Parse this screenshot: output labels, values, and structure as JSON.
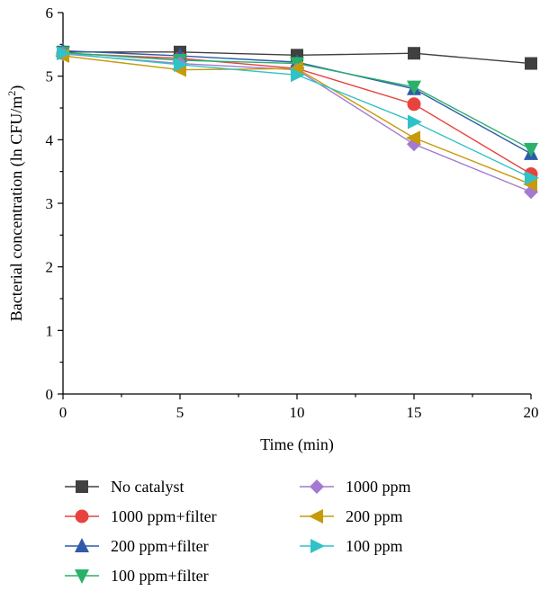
{
  "chart_data": {
    "type": "line",
    "xlabel": "Time (min)",
    "ylabel_main": "Bacterial concentration (ln CFU/m",
    "ylabel_sup": "2",
    "ylabel_close": ")",
    "xlim": [
      0,
      20
    ],
    "ylim": [
      0,
      6
    ],
    "xticks": [
      "0",
      "5",
      "10",
      "15",
      "20"
    ],
    "yticks": [
      "0",
      "1",
      "2",
      "3",
      "4",
      "5",
      "6"
    ],
    "x": [
      0,
      5,
      10,
      15,
      20
    ],
    "grid": false,
    "legend_position": "bottom",
    "series": [
      {
        "name": "No catalyst",
        "marker": "square",
        "color": "#404040",
        "values": [
          5.38,
          5.38,
          5.33,
          5.36,
          5.2
        ]
      },
      {
        "name": "1000 ppm+filter",
        "marker": "circle",
        "color": "#e8423f",
        "values": [
          5.36,
          5.28,
          5.12,
          4.56,
          3.46
        ]
      },
      {
        "name": "200 ppm+filter",
        "marker": "triangle-up",
        "color": "#2f5aa8",
        "values": [
          5.4,
          5.32,
          5.22,
          4.8,
          3.78
        ]
      },
      {
        "name": "100 ppm+filter",
        "marker": "triangle-down",
        "color": "#2ab06a",
        "values": [
          5.37,
          5.25,
          5.2,
          4.83,
          3.85
        ]
      },
      {
        "name": "1000 ppm",
        "marker": "diamond",
        "color": "#a37ad0",
        "values": [
          5.35,
          5.2,
          5.1,
          3.93,
          3.18
        ]
      },
      {
        "name": "200 ppm",
        "marker": "triangle-left",
        "color": "#c79a0a",
        "values": [
          5.32,
          5.1,
          5.12,
          4.03,
          3.3
        ]
      },
      {
        "name": "100 ppm",
        "marker": "triangle-right",
        "color": "#30c2c6",
        "values": [
          5.36,
          5.18,
          5.02,
          4.28,
          3.4
        ]
      }
    ]
  }
}
